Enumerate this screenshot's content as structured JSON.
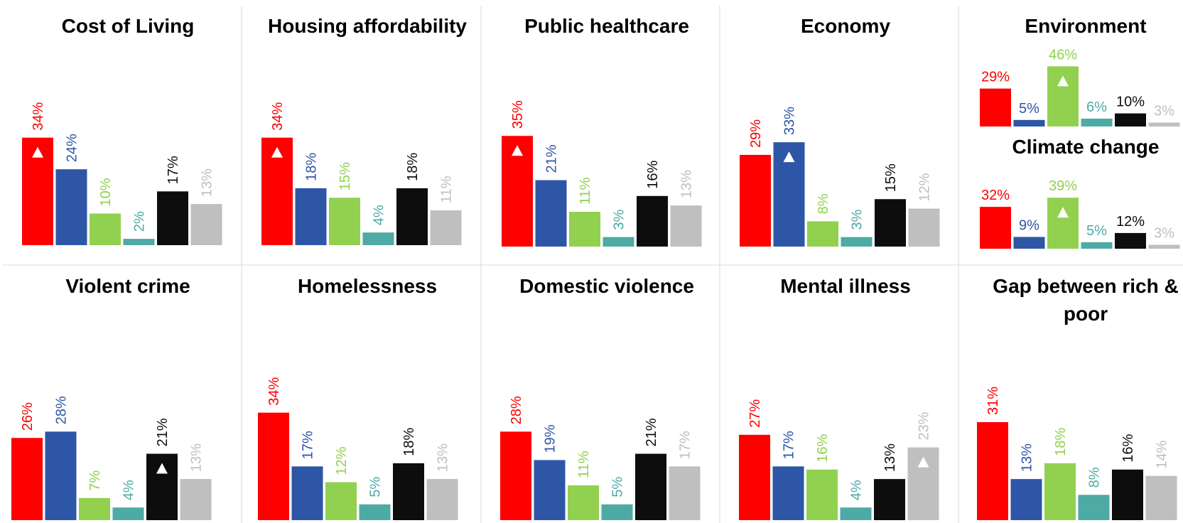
{
  "chart_data": [
    {
      "type": "bar",
      "title": "Cost of Living",
      "categories": [
        "",
        "",
        "",
        "",
        "",
        ""
      ],
      "values": [
        34,
        24,
        10,
        2,
        17,
        13
      ],
      "labels": [
        "34%",
        "24%",
        "10%",
        "2%",
        "17%",
        "13%"
      ],
      "colors": [
        "#fe0000",
        "#2e56a6",
        "#92d050",
        "#4eaaa4",
        "#0d0d0d",
        "#bfbfbf"
      ],
      "up_markers": [
        0
      ],
      "label_rotation": "vertical"
    },
    {
      "type": "bar",
      "title": "Housing affordability",
      "categories": [
        "",
        "",
        "",
        "",
        "",
        ""
      ],
      "values": [
        34,
        18,
        15,
        4,
        18,
        11
      ],
      "labels": [
        "34%",
        "18%",
        "15%",
        "4%",
        "18%",
        "11%"
      ],
      "colors": [
        "#fe0000",
        "#2e56a6",
        "#92d050",
        "#4eaaa4",
        "#0d0d0d",
        "#bfbfbf"
      ],
      "up_markers": [
        0
      ],
      "label_rotation": "vertical"
    },
    {
      "type": "bar",
      "title": "Public healthcare",
      "categories": [
        "",
        "",
        "",
        "",
        "",
        ""
      ],
      "values": [
        35,
        21,
        11,
        3,
        16,
        13
      ],
      "labels": [
        "35%",
        "21%",
        "11%",
        "3%",
        "16%",
        "13%"
      ],
      "colors": [
        "#fe0000",
        "#2e56a6",
        "#92d050",
        "#4eaaa4",
        "#0d0d0d",
        "#bfbfbf"
      ],
      "up_markers": [
        0
      ],
      "label_rotation": "vertical"
    },
    {
      "type": "bar",
      "title": "Economy",
      "categories": [
        "",
        "",
        "",
        "",
        "",
        ""
      ],
      "values": [
        29,
        33,
        8,
        3,
        15,
        12
      ],
      "labels": [
        "29%",
        "33%",
        "8%",
        "3%",
        "15%",
        "12%"
      ],
      "colors": [
        "#fe0000",
        "#2e56a6",
        "#92d050",
        "#4eaaa4",
        "#0d0d0d",
        "#bfbfbf"
      ],
      "up_markers": [
        1
      ],
      "label_rotation": "vertical"
    },
    {
      "type": "bar",
      "title": "Environment",
      "categories": [
        "",
        "",
        "",
        "",
        "",
        ""
      ],
      "values": [
        29,
        5,
        46,
        6,
        10,
        3
      ],
      "labels": [
        "29%",
        "5%",
        "46%",
        "6%",
        "10%",
        "3%"
      ],
      "colors": [
        "#fe0000",
        "#2e56a6",
        "#92d050",
        "#4eaaa4",
        "#0d0d0d",
        "#bfbfbf"
      ],
      "up_markers": [
        2
      ],
      "label_rotation": "horizontal"
    },
    {
      "type": "bar",
      "title": "Climate change",
      "categories": [
        "",
        "",
        "",
        "",
        "",
        ""
      ],
      "values": [
        32,
        9,
        39,
        5,
        12,
        3
      ],
      "labels": [
        "32%",
        "9%",
        "39%",
        "5%",
        "12%",
        "3%"
      ],
      "colors": [
        "#fe0000",
        "#2e56a6",
        "#92d050",
        "#4eaaa4",
        "#0d0d0d",
        "#bfbfbf"
      ],
      "up_markers": [
        2
      ],
      "label_rotation": "horizontal"
    },
    {
      "type": "bar",
      "title": "Violent crime",
      "categories": [
        "",
        "",
        "",
        "",
        "",
        ""
      ],
      "values": [
        26,
        28,
        7,
        4,
        21,
        13
      ],
      "labels": [
        "26%",
        "28%",
        "7%",
        "4%",
        "21%",
        "13%"
      ],
      "colors": [
        "#fe0000",
        "#2e56a6",
        "#92d050",
        "#4eaaa4",
        "#0d0d0d",
        "#bfbfbf"
      ],
      "up_markers": [
        4
      ],
      "label_rotation": "vertical"
    },
    {
      "type": "bar",
      "title": "Homelessness",
      "categories": [
        "",
        "",
        "",
        "",
        "",
        ""
      ],
      "values": [
        34,
        17,
        12,
        5,
        18,
        13
      ],
      "labels": [
        "34%",
        "17%",
        "12%",
        "5%",
        "18%",
        "13%"
      ],
      "colors": [
        "#fe0000",
        "#2e56a6",
        "#92d050",
        "#4eaaa4",
        "#0d0d0d",
        "#bfbfbf"
      ],
      "up_markers": [],
      "label_rotation": "vertical"
    },
    {
      "type": "bar",
      "title": "Domestic violence",
      "categories": [
        "",
        "",
        "",
        "",
        "",
        ""
      ],
      "values": [
        28,
        19,
        11,
        5,
        21,
        17
      ],
      "labels": [
        "28%",
        "19%",
        "11%",
        "5%",
        "21%",
        "17%"
      ],
      "colors": [
        "#fe0000",
        "#2e56a6",
        "#92d050",
        "#4eaaa4",
        "#0d0d0d",
        "#bfbfbf"
      ],
      "up_markers": [],
      "label_rotation": "vertical"
    },
    {
      "type": "bar",
      "title": "Mental illness",
      "categories": [
        "",
        "",
        "",
        "",
        "",
        ""
      ],
      "values": [
        27,
        17,
        16,
        4,
        13,
        23
      ],
      "labels": [
        "27%",
        "17%",
        "16%",
        "4%",
        "13%",
        "23%"
      ],
      "colors": [
        "#fe0000",
        "#2e56a6",
        "#92d050",
        "#4eaaa4",
        "#0d0d0d",
        "#bfbfbf"
      ],
      "up_markers": [
        5
      ],
      "label_rotation": "vertical"
    },
    {
      "type": "bar",
      "title": "Gap between rich & poor",
      "categories": [
        "",
        "",
        "",
        "",
        "",
        ""
      ],
      "values": [
        31,
        13,
        18,
        8,
        16,
        14
      ],
      "labels": [
        "31%",
        "13%",
        "18%",
        "8%",
        "16%",
        "14%"
      ],
      "colors": [
        "#fe0000",
        "#2e56a6",
        "#92d050",
        "#4eaaa4",
        "#0d0d0d",
        "#bfbfbf"
      ],
      "up_markers": [],
      "label_rotation": "vertical"
    }
  ]
}
